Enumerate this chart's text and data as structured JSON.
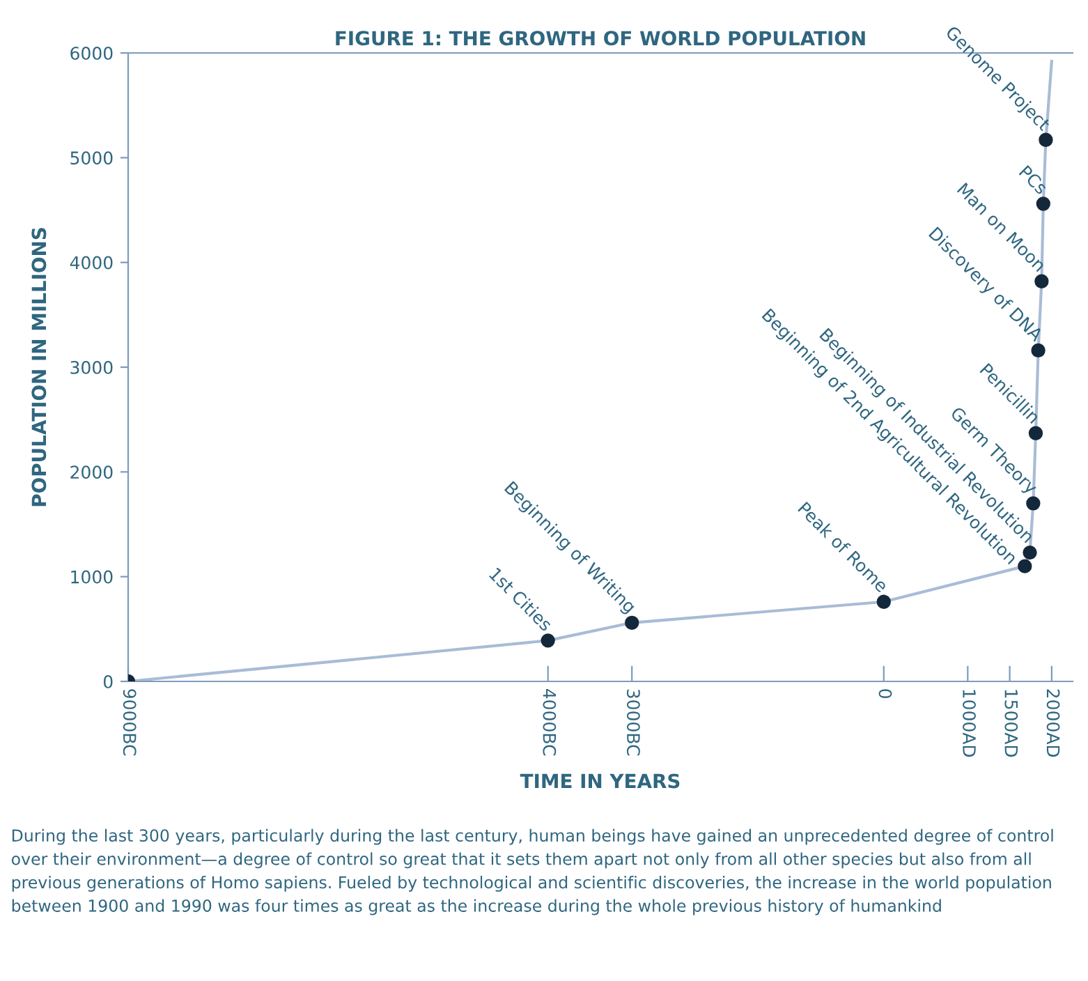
{
  "chart_data": {
    "type": "line",
    "title": "FIGURE 1: THE GROWTH OF WORLD POPULATION",
    "xlabel": "TIME IN YEARS",
    "ylabel": "POPULATION IN MILLIONS",
    "series": [
      {
        "color": "#a9bcd6",
        "marker": "none",
        "x": [
          -9000,
          -4000,
          -3000,
          0,
          1680,
          1740,
          1780,
          1810,
          1840,
          1880,
          1900,
          1930,
          2000
        ],
        "values": [
          0,
          390,
          560,
          760,
          1100,
          1230,
          1700,
          2370,
          3160,
          3820,
          4560,
          5170,
          5920
        ]
      },
      {
        "type": "scatter",
        "color": "#14283c",
        "marker": "circle",
        "x": [
          -9000,
          -4000,
          -3000,
          0,
          1680,
          1740,
          1780,
          1810,
          1840,
          1880,
          1900,
          1930
        ],
        "values": [
          0,
          390,
          560,
          760,
          1100,
          1230,
          1700,
          2370,
          3160,
          3820,
          4560,
          5170
        ]
      }
    ],
    "xlim": [
      -9000,
      2250
    ],
    "ylim": [
      0,
      6000
    ],
    "xticks": [
      {
        "value": -9000,
        "label": "9000BC"
      },
      {
        "value": -4000,
        "label": "4000BC"
      },
      {
        "value": -3000,
        "label": "3000BC"
      },
      0,
      {
        "value": 1000,
        "label": "1000AD"
      },
      {
        "value": 1500,
        "label": "1500AD"
      },
      {
        "value": 2000,
        "label": "2000AD"
      }
    ],
    "yticks": [
      0,
      1000,
      2000,
      3000,
      4000,
      5000,
      6000
    ],
    "grid": false,
    "annotations": [
      {
        "text": "1st Cities",
        "x": -4000,
        "y": 390
      },
      {
        "text": "Beginning of Writing",
        "x": -3000,
        "y": 560
      },
      {
        "text": "Peak of Rome",
        "x": 0,
        "y": 760
      },
      {
        "text": "Beginning of 2nd Agricultural Revolution",
        "x": 1680,
        "y": 1100
      },
      {
        "text": "Beginning of Industrial Revolution",
        "x": 1740,
        "y": 1230
      },
      {
        "text": "Germ Theory",
        "x": 1780,
        "y": 1700
      },
      {
        "text": "Penicillin",
        "x": 1810,
        "y": 2370
      },
      {
        "text": "Discovery of DNA",
        "x": 1840,
        "y": 3160
      },
      {
        "text": "Man on Moon",
        "x": 1880,
        "y": 3820
      },
      {
        "text": "PCs",
        "x": 1900,
        "y": 4560
      },
      {
        "text": "Genome Project",
        "x": 1930,
        "y": 5170
      },
      "During the last 300 years, particularly during the last century, human beings have gained an unprecedented degree of control over their environment—a degree of control so great that it sets them apart not only from all other species but also from all previous generations of Homo sapiens. Fueled by technological and scientific discoveries, the increase in the world population between 1900 and 1990 was four times as great as the increase during the whole previous history of humankind"
    ]
  }
}
